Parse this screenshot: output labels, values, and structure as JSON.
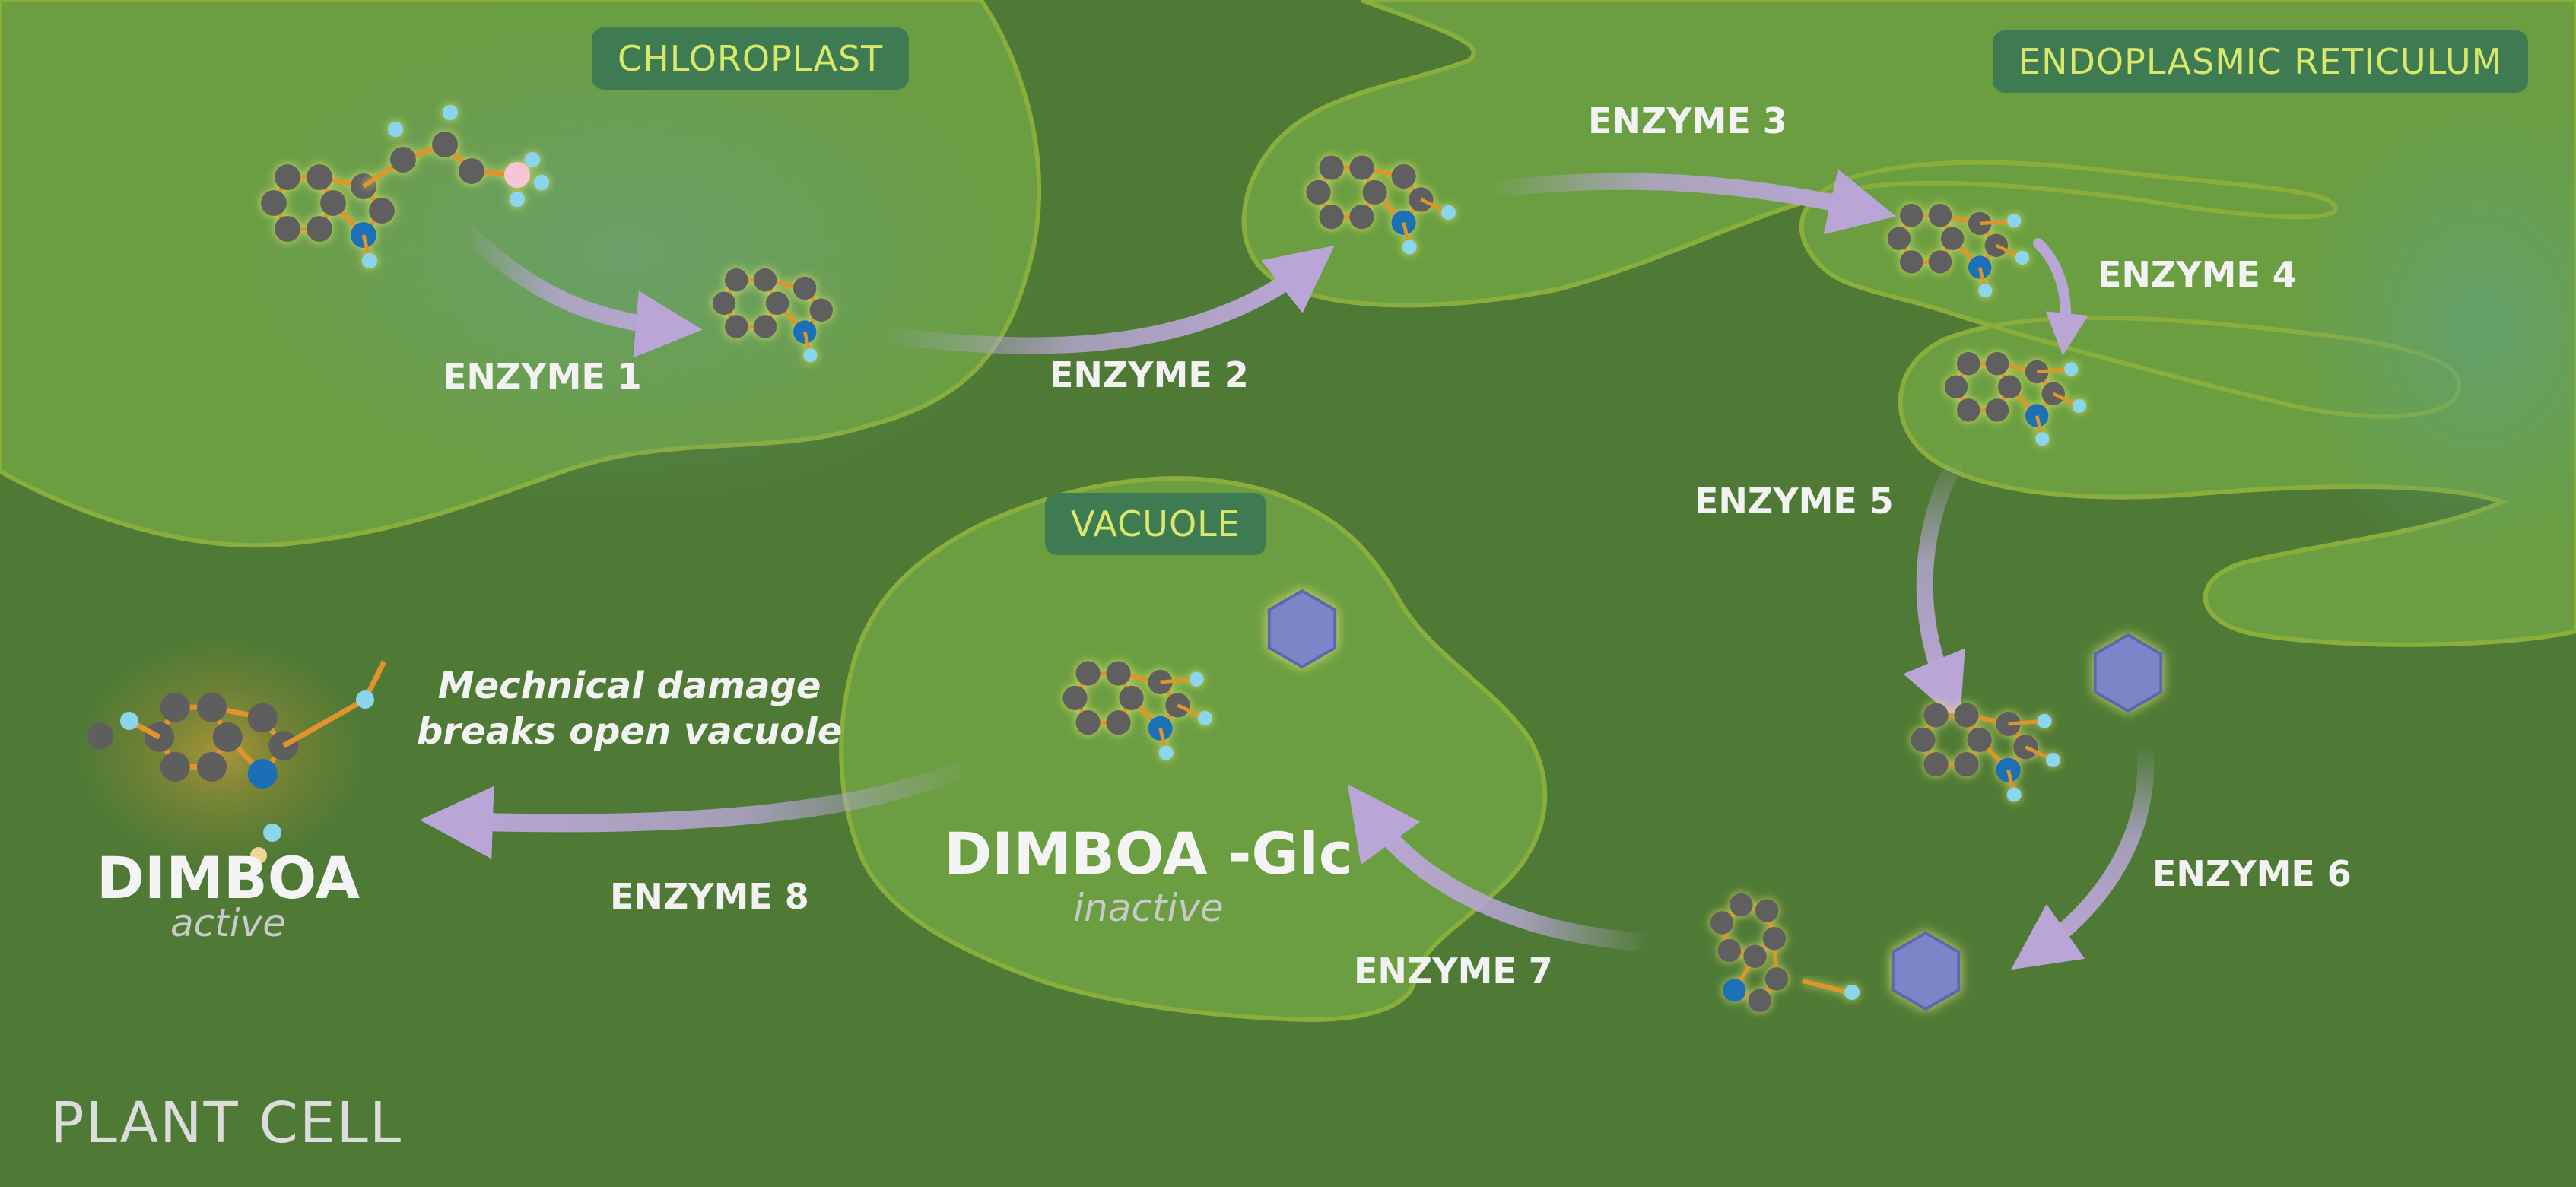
{
  "regions": {
    "chloroplast": "CHLOROPLAST",
    "endoplasmic_reticulum": "ENDOPLASMIC RETICULUM",
    "vacuole": "VACUOLE",
    "cell": "PLANT CELL"
  },
  "enzymes": [
    "ENZYME 1",
    "ENZYME 2",
    "ENZYME 3",
    "ENZYME 4",
    "ENZYME 5",
    "ENZYME 6",
    "ENZYME 7",
    "ENZYME 8"
  ],
  "products": {
    "dimboa": {
      "name": "DIMBOA",
      "state": "active"
    },
    "dimboa_glc": {
      "name": "DIMBOA -Glc",
      "state": "inactive"
    }
  },
  "note": {
    "line1": "Mechnical damage",
    "line2": "breaks open vacuole"
  },
  "colors": {
    "cytoplasm": "#4e7a35",
    "organelle": "#6a9e40",
    "label_bg": "#3e7a52",
    "label_text": "#d8e86a",
    "arrow": "#b9a6d6",
    "atom_carbon": "#5e5e5e",
    "atom_nitrogen": "#1d6fb5",
    "atom_hydrogen": "#8ad6ef",
    "bond": "#e0952c",
    "sugar": "#7a86c8"
  }
}
